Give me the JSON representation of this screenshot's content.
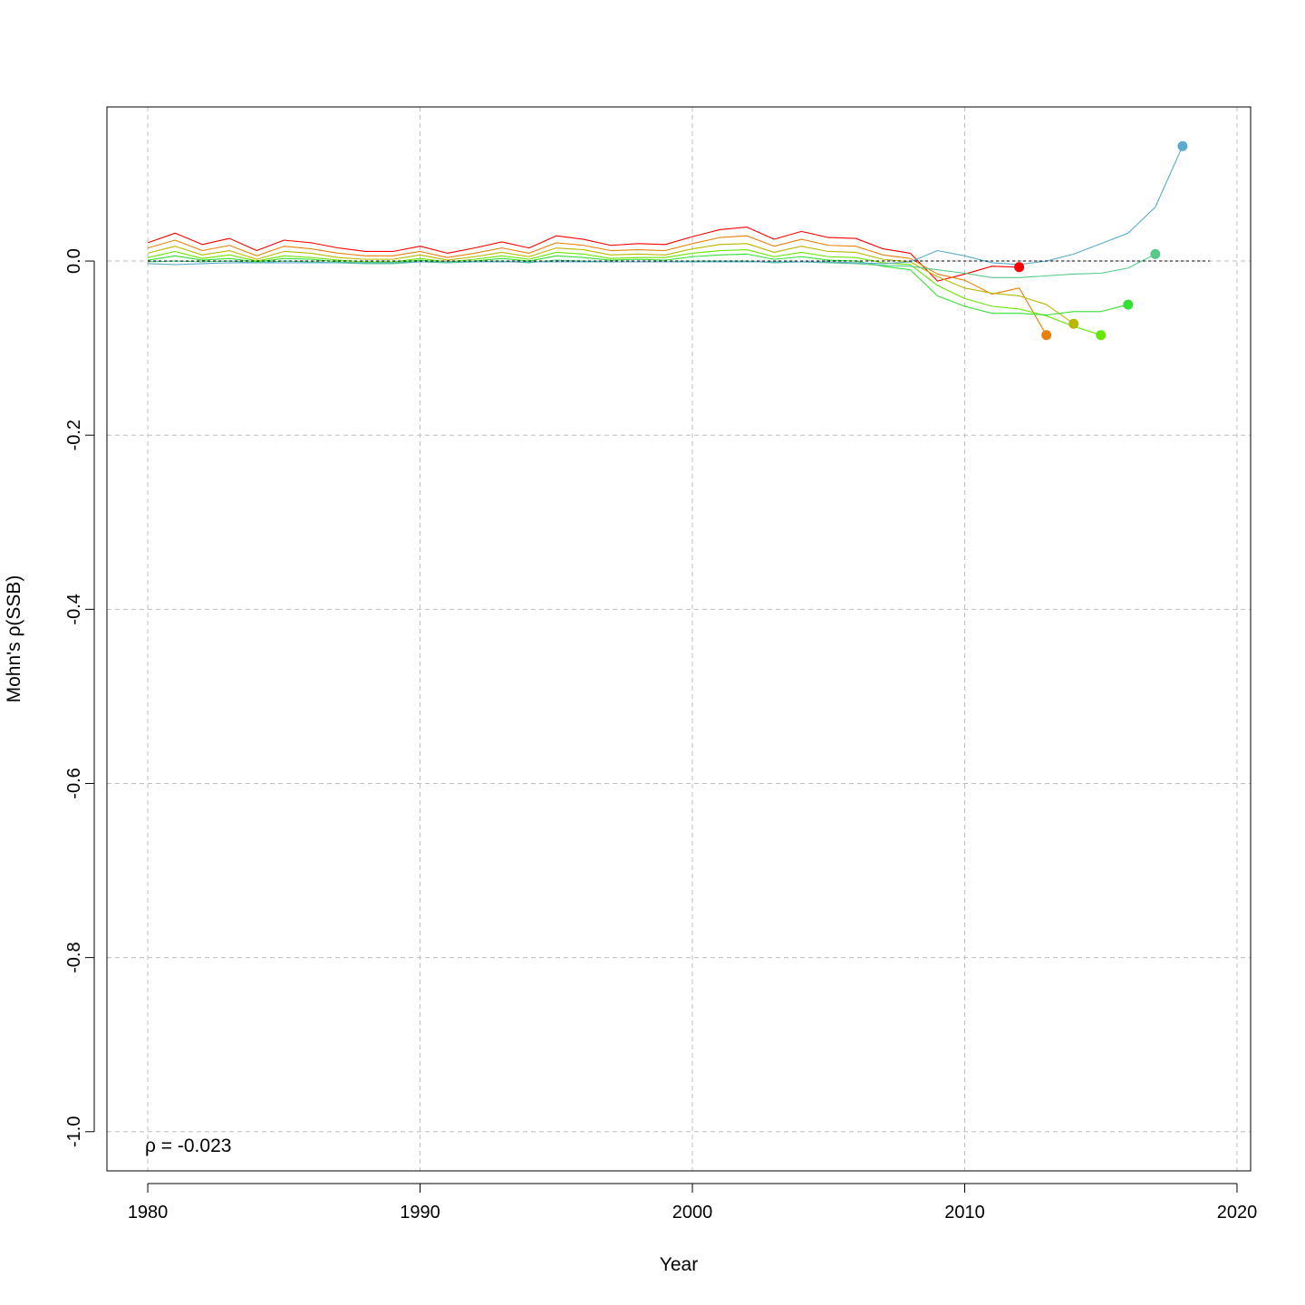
{
  "chart_data": {
    "type": "line",
    "xlabel": "Year",
    "ylabel": "Mohn's ρ(SSB)",
    "xlim": [
      1978.5,
      2020.5
    ],
    "ylim": [
      -1.045,
      0.177
    ],
    "x_ticks": [
      1980,
      1990,
      2000,
      2010,
      2020
    ],
    "x_tick_labels": [
      "1980",
      "1990",
      "2000",
      "2010",
      "2020"
    ],
    "y_ticks": [
      0.0,
      -0.2,
      -0.4,
      -0.6,
      -0.8,
      -1.0
    ],
    "y_tick_labels": [
      "0.0",
      "-0.2",
      "-0.4",
      "-0.6",
      "-0.8",
      "-1.0"
    ],
    "grid": true,
    "reference_line": 0,
    "annotation": "ρ = -0.023",
    "series": [
      {
        "color": "#FF0000",
        "x": [
          1980,
          1981,
          1982,
          1983,
          1984,
          1985,
          1986,
          1987,
          1988,
          1989,
          1990,
          1991,
          1992,
          1993,
          1994,
          1995,
          1996,
          1997,
          1998,
          1999,
          2000,
          2001,
          2002,
          2003,
          2004,
          2005,
          2006,
          2007,
          2008,
          2009,
          2010,
          2011,
          2012
        ],
        "y": [
          0.021,
          0.032,
          0.019,
          0.026,
          0.012,
          0.024,
          0.021,
          0.015,
          0.011,
          0.011,
          0.017,
          0.009,
          0.015,
          0.022,
          0.015,
          0.029,
          0.025,
          0.018,
          0.02,
          0.019,
          0.028,
          0.036,
          0.039,
          0.025,
          0.034,
          0.027,
          0.026,
          0.014,
          0.009,
          -0.023,
          -0.015,
          -0.006,
          -0.007
        ],
        "end_marker": true
      },
      {
        "color": "#E8800A",
        "x": [
          1980,
          1981,
          1982,
          1983,
          1984,
          1985,
          1986,
          1987,
          1988,
          1989,
          1990,
          1991,
          1992,
          1993,
          1994,
          1995,
          1996,
          1997,
          1998,
          1999,
          2000,
          2001,
          2002,
          2003,
          2004,
          2005,
          2006,
          2007,
          2008,
          2009,
          2010,
          2011,
          2012,
          2013
        ],
        "y": [
          0.015,
          0.024,
          0.012,
          0.018,
          0.006,
          0.017,
          0.014,
          0.009,
          0.006,
          0.006,
          0.011,
          0.004,
          0.009,
          0.015,
          0.009,
          0.021,
          0.018,
          0.012,
          0.013,
          0.012,
          0.02,
          0.027,
          0.029,
          0.017,
          0.025,
          0.018,
          0.017,
          0.007,
          0.003,
          -0.015,
          -0.022,
          -0.038,
          -0.031,
          -0.085
        ],
        "end_marker": true
      },
      {
        "color": "#B8B800",
        "x": [
          1980,
          1981,
          1982,
          1983,
          1984,
          1985,
          1986,
          1987,
          1988,
          1989,
          1990,
          1991,
          1992,
          1993,
          1994,
          1995,
          1996,
          1997,
          1998,
          1999,
          2000,
          2001,
          2002,
          2003,
          2004,
          2005,
          2006,
          2007,
          2008,
          2009,
          2010,
          2011,
          2012,
          2013,
          2014
        ],
        "y": [
          0.009,
          0.017,
          0.007,
          0.012,
          0.002,
          0.011,
          0.009,
          0.004,
          0.002,
          0.002,
          0.007,
          0.001,
          0.005,
          0.01,
          0.005,
          0.015,
          0.013,
          0.007,
          0.008,
          0.007,
          0.014,
          0.019,
          0.02,
          0.01,
          0.017,
          0.011,
          0.01,
          0.002,
          -0.001,
          -0.018,
          -0.031,
          -0.037,
          -0.04,
          -0.05,
          -0.072
        ],
        "end_marker": true
      },
      {
        "color": "#66E600",
        "x": [
          1980,
          1981,
          1982,
          1983,
          1984,
          1985,
          1986,
          1987,
          1988,
          1989,
          1990,
          1991,
          1992,
          1993,
          1994,
          1995,
          1996,
          1997,
          1998,
          1999,
          2000,
          2001,
          2002,
          2003,
          2004,
          2005,
          2006,
          2007,
          2008,
          2009,
          2010,
          2011,
          2012,
          2013,
          2014,
          2015
        ],
        "y": [
          0.004,
          0.011,
          0.003,
          0.007,
          0.0,
          0.006,
          0.004,
          0.001,
          -0.001,
          -0.001,
          0.003,
          -0.001,
          0.002,
          0.006,
          0.002,
          0.01,
          0.008,
          0.003,
          0.004,
          0.004,
          0.009,
          0.012,
          0.013,
          0.005,
          0.01,
          0.005,
          0.004,
          -0.002,
          -0.004,
          -0.028,
          -0.043,
          -0.052,
          -0.055,
          -0.063,
          -0.075,
          -0.085
        ],
        "end_marker": true
      },
      {
        "color": "#33E033",
        "x": [
          1980,
          1981,
          1982,
          1983,
          1984,
          1985,
          1986,
          1987,
          1988,
          1989,
          1990,
          1991,
          1992,
          1993,
          1994,
          1995,
          1996,
          1997,
          1998,
          1999,
          2000,
          2001,
          2002,
          2003,
          2004,
          2005,
          2006,
          2007,
          2008,
          2009,
          2010,
          2011,
          2012,
          2013,
          2014,
          2015,
          2016
        ],
        "y": [
          0.001,
          0.006,
          0.001,
          0.003,
          -0.001,
          0.003,
          0.002,
          -0.001,
          -0.002,
          -0.002,
          0.001,
          -0.002,
          0.0,
          0.003,
          0.0,
          0.006,
          0.004,
          0.001,
          0.002,
          0.001,
          0.005,
          0.007,
          0.008,
          0.002,
          0.005,
          0.001,
          0.0,
          -0.006,
          -0.01,
          -0.04,
          -0.052,
          -0.06,
          -0.06,
          -0.062,
          -0.058,
          -0.058,
          -0.05
        ],
        "end_marker": true
      },
      {
        "color": "#55C88A",
        "x": [
          1980,
          1981,
          1982,
          1983,
          1984,
          1985,
          1986,
          1987,
          1988,
          1989,
          1990,
          1991,
          1992,
          1993,
          1994,
          1995,
          1996,
          1997,
          1998,
          1999,
          2000,
          2001,
          2002,
          2003,
          2004,
          2005,
          2006,
          2007,
          2008,
          2009,
          2010,
          2011,
          2012,
          2013,
          2014,
          2015,
          2016,
          2017
        ],
        "y": [
          -0.001,
          0.0,
          -0.001,
          0.0,
          -0.002,
          0.0,
          -0.001,
          -0.002,
          -0.003,
          -0.003,
          -0.001,
          -0.002,
          -0.001,
          0.0,
          -0.002,
          0.001,
          0.0,
          -0.001,
          -0.001,
          -0.001,
          0.0,
          0.0,
          0.0,
          -0.002,
          -0.001,
          -0.002,
          -0.003,
          -0.005,
          -0.006,
          -0.01,
          -0.014,
          -0.019,
          -0.019,
          -0.017,
          -0.015,
          -0.014,
          -0.008,
          0.008
        ],
        "end_marker": true
      },
      {
        "color": "#5AABCC",
        "x": [
          1980,
          1981,
          1982,
          1983,
          1984,
          1985,
          1986,
          1987,
          1988,
          1989,
          1990,
          1991,
          1992,
          1993,
          1994,
          1995,
          1996,
          1997,
          1998,
          1999,
          2000,
          2001,
          2002,
          2003,
          2004,
          2005,
          2006,
          2007,
          2008,
          2009,
          2010,
          2011,
          2012,
          2013,
          2014,
          2015,
          2016,
          2017,
          2018
        ],
        "y": [
          -0.003,
          -0.004,
          -0.003,
          -0.002,
          -0.002,
          -0.002,
          -0.002,
          -0.002,
          -0.002,
          -0.002,
          -0.001,
          -0.001,
          -0.001,
          -0.001,
          -0.001,
          -0.001,
          -0.001,
          -0.001,
          -0.001,
          -0.001,
          -0.001,
          -0.001,
          -0.001,
          -0.001,
          -0.001,
          -0.001,
          -0.002,
          -0.003,
          -0.001,
          0.012,
          0.006,
          -0.002,
          -0.004,
          0.0,
          0.008,
          0.02,
          0.032,
          0.062,
          0.132
        ],
        "end_marker": true
      }
    ]
  }
}
